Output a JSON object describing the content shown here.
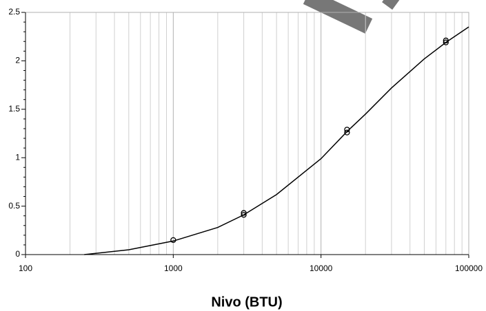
{
  "chart_data": {
    "type": "scatter",
    "xlabel": "Nivo (BTU)",
    "xscale": "log",
    "xlim": [
      100,
      100000
    ],
    "xticks": [
      100,
      1000,
      10000,
      100000
    ],
    "ylim": [
      0,
      2.5
    ],
    "yticks": [
      0,
      0.5,
      1,
      1.5,
      2,
      2.5
    ],
    "grid": true,
    "series": [
      {
        "type": "scatter",
        "color": "#000000",
        "x": [
          1000,
          3000,
          3000,
          15000,
          15000,
          70000,
          70000
        ],
        "values": [
          0.15,
          0.41,
          0.43,
          1.26,
          1.29,
          2.19,
          2.21
        ]
      },
      {
        "type": "line",
        "color": "#000000",
        "x": [
          250,
          500,
          1000,
          2000,
          3000,
          5000,
          10000,
          15000,
          20000,
          30000,
          50000,
          70000,
          100000
        ],
        "values": [
          0,
          0.05,
          0.14,
          0.28,
          0.41,
          0.62,
          0.99,
          1.27,
          1.45,
          1.72,
          2.02,
          2.19,
          2.35
        ]
      }
    ]
  }
}
